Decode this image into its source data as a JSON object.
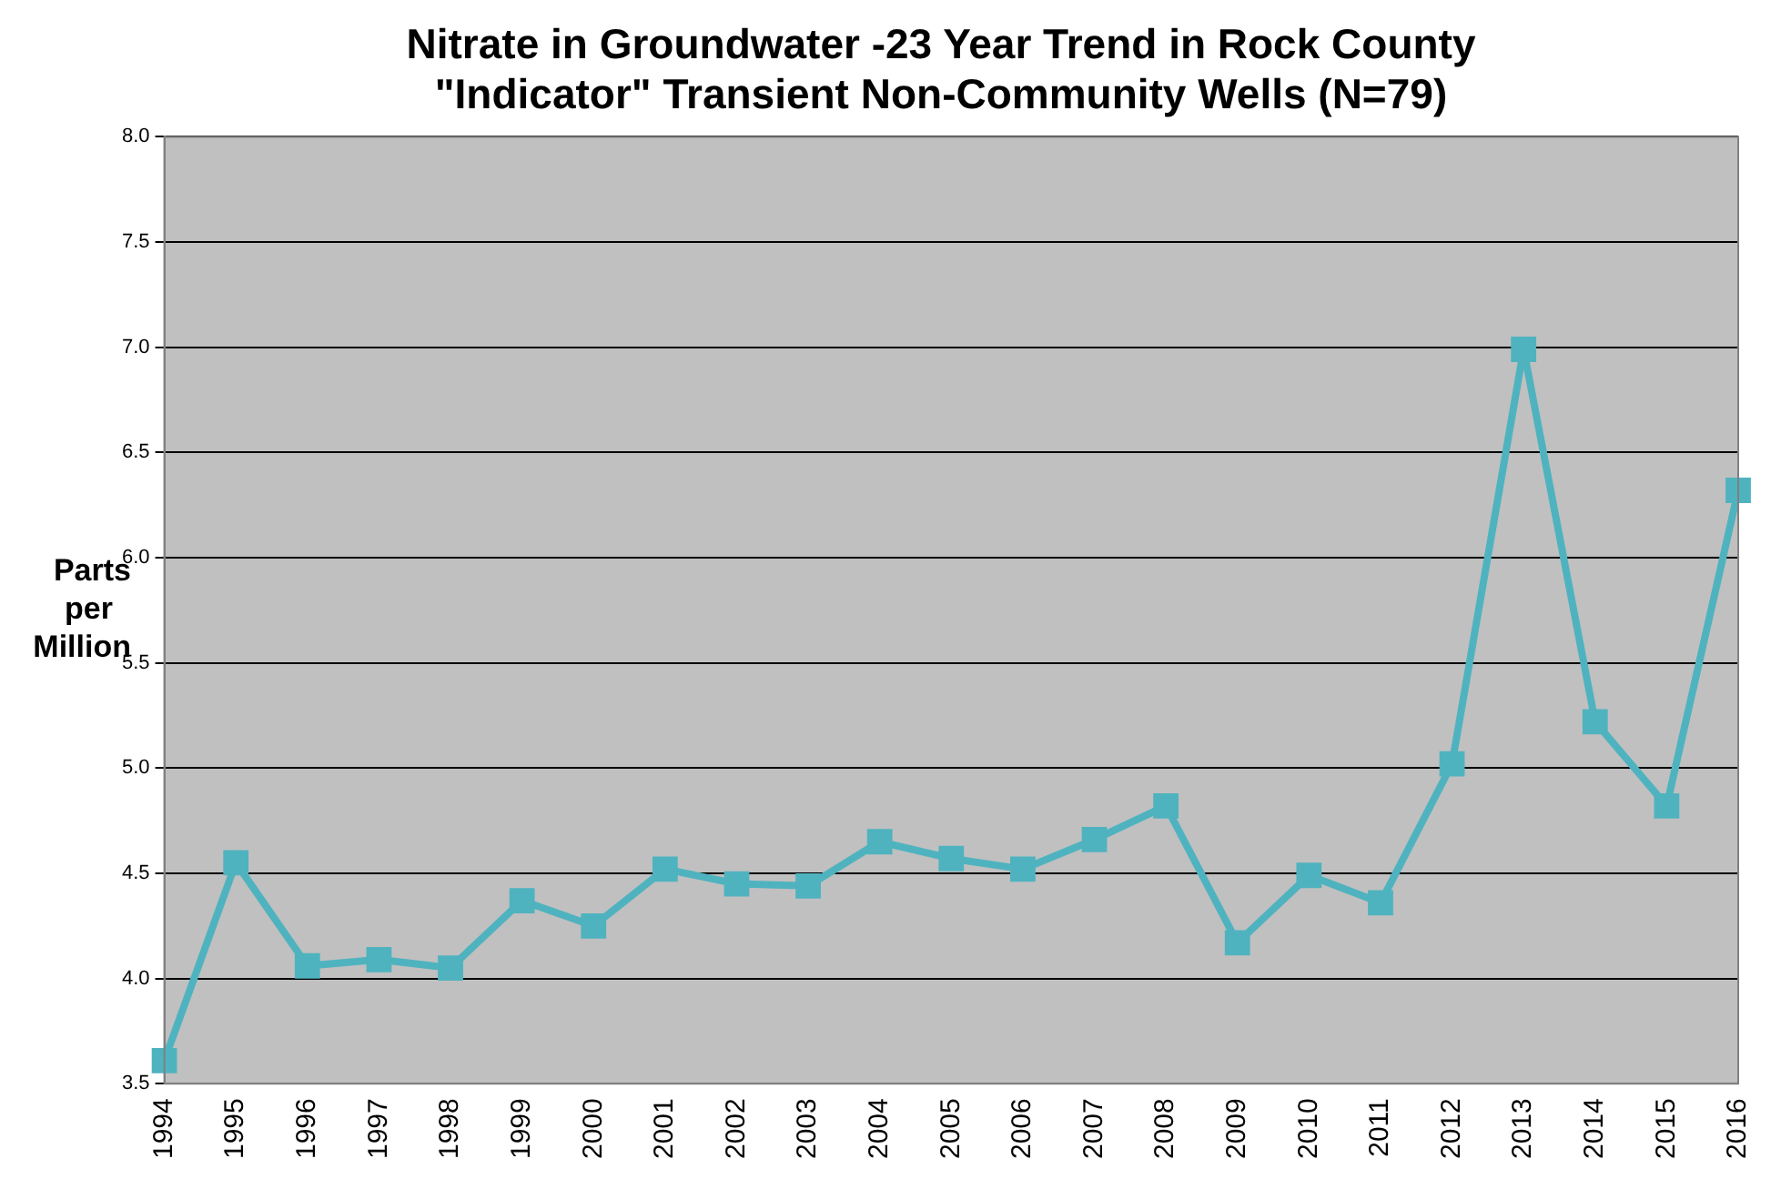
{
  "chart_data": {
    "type": "line",
    "title": "Nitrate in Groundwater -23 Year Trend in Rock County\n\"Indicator\" Transient Non-Community Wells (N=79)",
    "ylabel": "Parts\nper\nMillion",
    "categories": [
      "1994",
      "1995",
      "1996",
      "1997",
      "1998",
      "1999",
      "2000",
      "2001",
      "2002",
      "2003",
      "2004",
      "2005",
      "2006",
      "2007",
      "2008",
      "2009",
      "2010",
      "2011",
      "2012",
      "2013",
      "2014",
      "2015",
      "2016"
    ],
    "series": [
      {
        "color": "#4fb3bf",
        "values": [
          3.61,
          4.55,
          4.06,
          4.09,
          4.05,
          4.37,
          4.25,
          4.52,
          4.45,
          4.44,
          4.65,
          4.57,
          4.52,
          4.66,
          4.82,
          4.17,
          4.49,
          4.36,
          5.02,
          6.99,
          5.22,
          4.82,
          6.32
        ]
      }
    ],
    "ylim": [
      3.5,
      8.0
    ],
    "yticks": [
      {
        "value": 3.5,
        "label": "3.5"
      },
      {
        "value": 4,
        "label": "4.0"
      },
      {
        "value": 4.5,
        "label": "4.5"
      },
      {
        "value": 5,
        "label": "5.0"
      },
      {
        "value": 5.5,
        "label": "5.5"
      },
      {
        "value": 6,
        "label": "6.0"
      },
      {
        "value": 6.5,
        "label": "6.5"
      },
      {
        "value": 7,
        "label": "7.0"
      },
      {
        "value": 7.5,
        "label": "7.5"
      },
      {
        "value": 8,
        "label": "8.0"
      }
    ],
    "grid": "y",
    "legend": false,
    "marker": "square",
    "line_style": "solid"
  }
}
